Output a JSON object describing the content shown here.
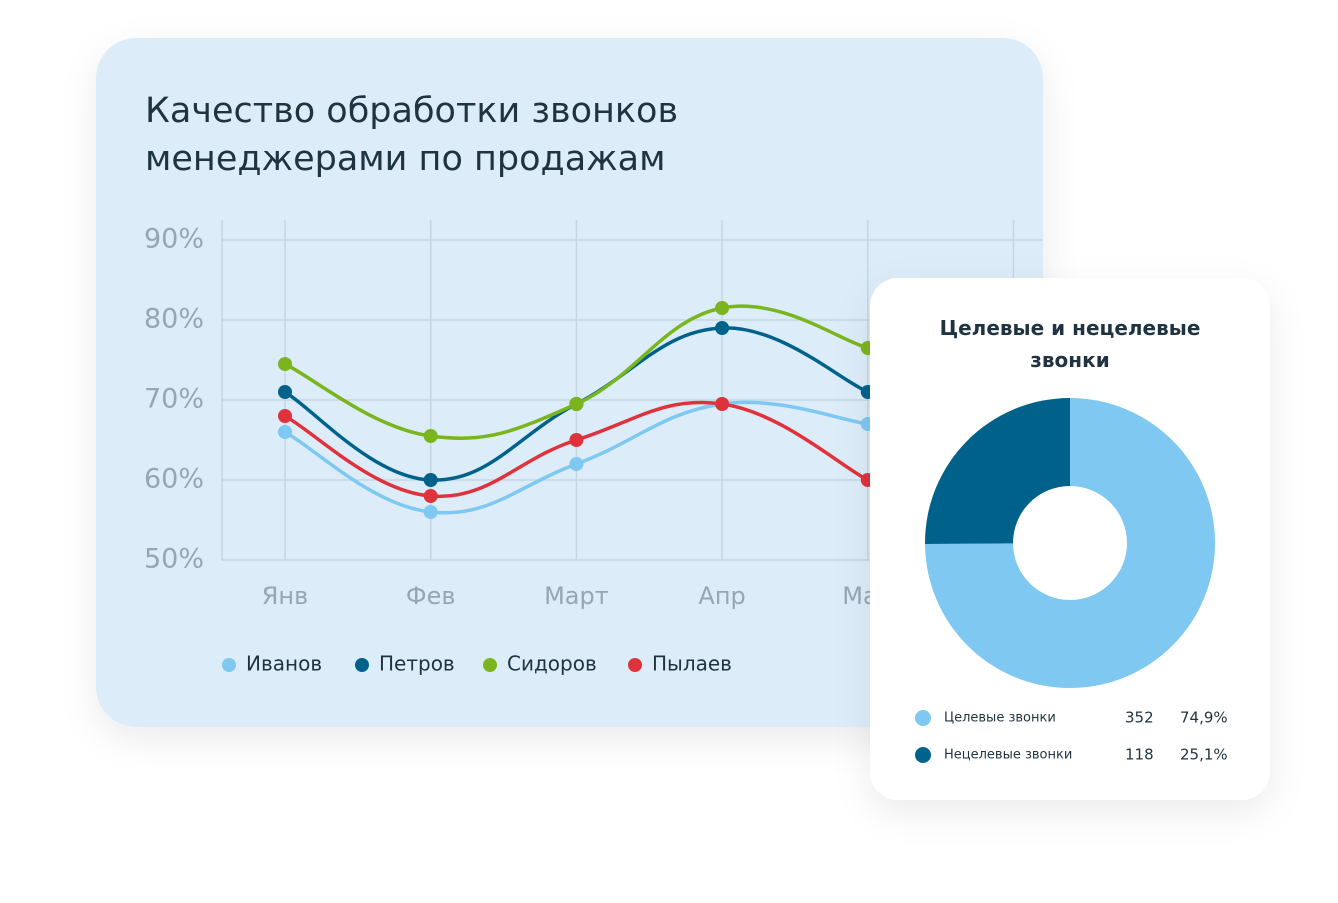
{
  "chart_data": [
    {
      "type": "line",
      "title": "Качество обработки звонков менеджерами по продажам",
      "categories": [
        "Янв",
        "Фев",
        "Март",
        "Апр",
        "Май"
      ],
      "series": [
        {
          "name": "Иванов",
          "color": "#7ec8f2",
          "values": [
            66,
            56,
            62,
            69.5,
            67
          ]
        },
        {
          "name": "Петров",
          "color": "#00628a",
          "values": [
            71,
            60,
            69.5,
            79,
            71
          ]
        },
        {
          "name": "Сидоров",
          "color": "#7ab51d",
          "values": [
            74.5,
            65.5,
            69.5,
            81.5,
            76.5
          ]
        },
        {
          "name": "Пылаев",
          "color": "#e0323c",
          "values": [
            68,
            58,
            65,
            69.5,
            60
          ]
        }
      ],
      "ylim": [
        50,
        90
      ],
      "yticks": [
        {
          "value": 50,
          "label": "50%"
        },
        {
          "value": 60,
          "label": "60%"
        },
        {
          "value": 70,
          "label": "70%"
        },
        {
          "value": 80,
          "label": "80%"
        },
        {
          "value": 90,
          "label": "90%"
        }
      ],
      "grid": true
    },
    {
      "type": "donut",
      "title": "Целевые и нецелевые звонки",
      "categories": [
        "Целевые звонки",
        "Нецелевые звонки"
      ],
      "values": [
        352,
        118
      ],
      "colors": [
        "#7ec8f2",
        "#00628a"
      ],
      "shares": [
        74.9,
        25.1
      ],
      "share_labels": [
        "74,9%",
        "25,1%"
      ]
    }
  ]
}
